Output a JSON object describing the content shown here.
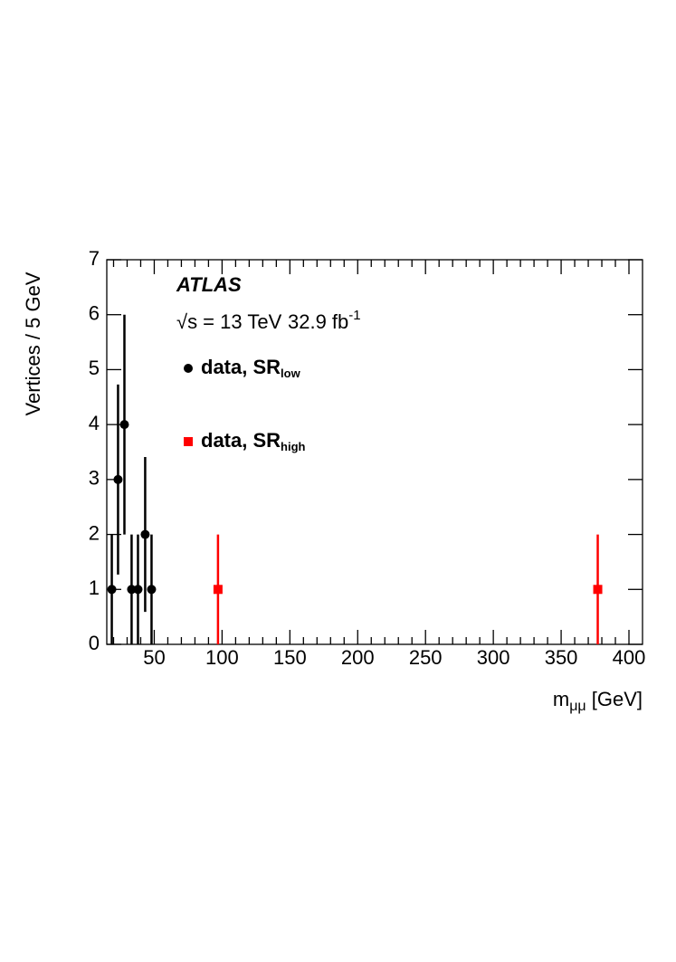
{
  "chart_data": {
    "type": "scatter",
    "experiment": "ATLAS",
    "energy_label": "√s = 13 TeV",
    "lumi": {
      "main": "32.9 fb",
      "superscript": "-1"
    },
    "ylabel": "Vertices / 5 GeV",
    "xlabel": {
      "main": "m",
      "subscript": "μμ",
      "suffix": " [GeV]"
    },
    "xlim": [
      15,
      410
    ],
    "ylim": [
      0,
      7
    ],
    "xticks": [
      50,
      100,
      150,
      200,
      250,
      300,
      350,
      400
    ],
    "yticks": [
      0,
      1,
      2,
      3,
      4,
      5,
      6,
      7
    ],
    "xminorticks": [
      20,
      30,
      40,
      60,
      70,
      80,
      90,
      110,
      120,
      130,
      140,
      160,
      170,
      180,
      190,
      210,
      220,
      230,
      240,
      260,
      270,
      280,
      290,
      310,
      320,
      330,
      340,
      360,
      370,
      380,
      390
    ],
    "series": [
      {
        "name": "data, SR",
        "name_subscript": "low",
        "color": "#000000",
        "marker": "circle",
        "x": [
          18.7,
          23.3,
          28,
          33.3,
          38,
          43.3,
          48
        ],
        "values": [
          1,
          3,
          4,
          1,
          1,
          2,
          1
        ],
        "errors": [
          1,
          1.73,
          2,
          1,
          1,
          1.41,
          1
        ]
      },
      {
        "name": "data, SR",
        "name_subscript": "high",
        "color": "#ff0000",
        "marker": "square",
        "x": [
          97,
          377
        ],
        "values": [
          1,
          1
        ],
        "errors": [
          1,
          1
        ]
      }
    ]
  }
}
